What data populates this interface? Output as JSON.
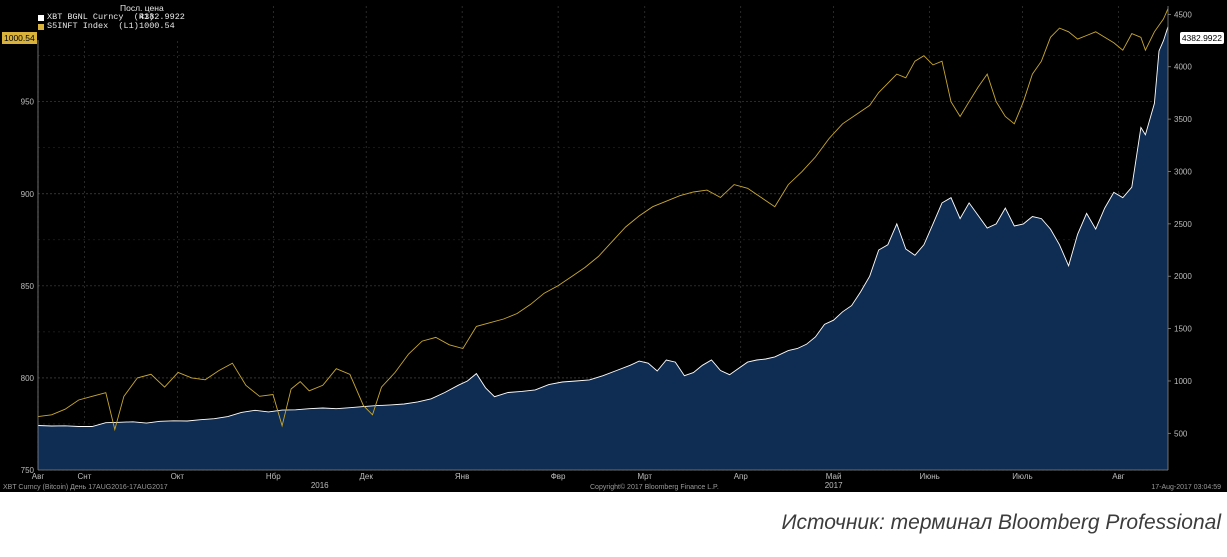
{
  "legend": {
    "header": "Посл. цена",
    "items": [
      {
        "name": "XBT BGNL Curncy  (R1)",
        "value": "4382.9922",
        "color": "#ffffff"
      },
      {
        "name": "S5INFT Index  (L1)",
        "value": "1000.54",
        "color": "#d8b23a"
      }
    ]
  },
  "last_value_tags": {
    "left": "1000.54",
    "right": "4382.9922"
  },
  "footer": {
    "left": "XBT Curncy (Bitcoin)  День 17AUG2016-17AUG2017",
    "center": "Copyright© 2017 Bloomberg Finance L.P.",
    "right": "17-Aug-2017 03:04:59"
  },
  "caption": "Источник: терминал Bloomberg Professional",
  "colors": {
    "background": "#000000",
    "area_fill": "#0f2c52",
    "area_line": "#ffffff",
    "index_line": "#c9a832"
  },
  "chart_data": {
    "type": "line",
    "x_range": [
      "2016-08-17",
      "2017-08-17"
    ],
    "months": [
      "Авг",
      "Снт",
      "Окт",
      "Нбр",
      "Дек",
      "Янв",
      "Фвр",
      "Мрт",
      "Апр",
      "Май",
      "Июнь",
      "Июль",
      "Авг"
    ],
    "years": [
      "2016",
      "2017"
    ],
    "y_left": {
      "min": 750,
      "max": 1002,
      "ticks": [
        750,
        800,
        850,
        900,
        950
      ]
    },
    "y_right": {
      "min": 150,
      "max": 4580,
      "ticks": [
        500,
        1000,
        1500,
        2000,
        2500,
        3000,
        3500,
        4000,
        4500
      ]
    },
    "grid": true,
    "series": [
      {
        "name": "XBT BGNL Curncy",
        "axis": "right",
        "style": "area",
        "points": [
          [
            0,
            575
          ],
          [
            6,
            570
          ],
          [
            12,
            572
          ],
          [
            18,
            565
          ],
          [
            24,
            565
          ],
          [
            30,
            602
          ],
          [
            36,
            605
          ],
          [
            42,
            610
          ],
          [
            48,
            598
          ],
          [
            54,
            615
          ],
          [
            60,
            620
          ],
          [
            66,
            618
          ],
          [
            72,
            630
          ],
          [
            78,
            640
          ],
          [
            84,
            660
          ],
          [
            90,
            700
          ],
          [
            96,
            720
          ],
          [
            102,
            705
          ],
          [
            108,
            722
          ],
          [
            114,
            725
          ],
          [
            120,
            735
          ],
          [
            126,
            742
          ],
          [
            132,
            735
          ],
          [
            138,
            745
          ],
          [
            144,
            755
          ],
          [
            150,
            765
          ],
          [
            156,
            772
          ],
          [
            162,
            780
          ],
          [
            168,
            800
          ],
          [
            174,
            830
          ],
          [
            180,
            890
          ],
          [
            186,
            960
          ],
          [
            190,
            1000
          ],
          [
            194,
            1070
          ],
          [
            198,
            935
          ],
          [
            202,
            850
          ],
          [
            208,
            890
          ],
          [
            214,
            900
          ],
          [
            220,
            915
          ],
          [
            226,
            965
          ],
          [
            232,
            990
          ],
          [
            238,
            1000
          ],
          [
            244,
            1010
          ],
          [
            250,
            1050
          ],
          [
            256,
            1100
          ],
          [
            262,
            1150
          ],
          [
            266,
            1190
          ],
          [
            270,
            1170
          ],
          [
            274,
            1095
          ],
          [
            278,
            1200
          ],
          [
            282,
            1180
          ],
          [
            286,
            1050
          ],
          [
            290,
            1080
          ],
          [
            294,
            1150
          ],
          [
            298,
            1200
          ],
          [
            302,
            1100
          ],
          [
            306,
            1060
          ],
          [
            310,
            1120
          ],
          [
            314,
            1180
          ],
          [
            318,
            1200
          ],
          [
            322,
            1210
          ],
          [
            326,
            1230
          ],
          [
            332,
            1290
          ],
          [
            336,
            1310
          ],
          [
            340,
            1350
          ],
          [
            344,
            1420
          ],
          [
            348,
            1540
          ],
          [
            352,
            1580
          ],
          [
            356,
            1660
          ],
          [
            360,
            1720
          ],
          [
            364,
            1850
          ],
          [
            368,
            2000
          ],
          [
            372,
            2250
          ],
          [
            376,
            2300
          ],
          [
            380,
            2500
          ],
          [
            384,
            2260
          ],
          [
            388,
            2200
          ],
          [
            392,
            2300
          ],
          [
            396,
            2500
          ],
          [
            400,
            2700
          ],
          [
            404,
            2750
          ],
          [
            408,
            2550
          ],
          [
            412,
            2700
          ],
          [
            416,
            2580
          ],
          [
            420,
            2460
          ],
          [
            424,
            2500
          ],
          [
            428,
            2650
          ],
          [
            432,
            2480
          ],
          [
            436,
            2500
          ],
          [
            440,
            2570
          ],
          [
            444,
            2550
          ],
          [
            448,
            2450
          ],
          [
            452,
            2300
          ],
          [
            456,
            2100
          ],
          [
            460,
            2400
          ],
          [
            464,
            2600
          ],
          [
            468,
            2450
          ],
          [
            472,
            2650
          ],
          [
            476,
            2800
          ],
          [
            480,
            2750
          ],
          [
            484,
            2850
          ],
          [
            488,
            3420
          ],
          [
            490,
            3350
          ],
          [
            494,
            3650
          ],
          [
            496,
            4150
          ],
          [
            498,
            4250
          ],
          [
            500,
            4382
          ]
        ]
      },
      {
        "name": "S5INFT Index",
        "axis": "left",
        "style": "line",
        "points": [
          [
            0,
            779
          ],
          [
            6,
            780
          ],
          [
            12,
            783
          ],
          [
            18,
            788
          ],
          [
            24,
            790
          ],
          [
            30,
            792
          ],
          [
            34,
            772
          ],
          [
            38,
            790
          ],
          [
            44,
            800
          ],
          [
            50,
            802
          ],
          [
            56,
            795
          ],
          [
            62,
            803
          ],
          [
            68,
            800
          ],
          [
            74,
            799
          ],
          [
            80,
            804
          ],
          [
            86,
            808
          ],
          [
            92,
            796
          ],
          [
            98,
            790
          ],
          [
            104,
            791
          ],
          [
            108,
            774
          ],
          [
            112,
            794
          ],
          [
            116,
            798
          ],
          [
            120,
            793
          ],
          [
            126,
            796
          ],
          [
            132,
            805
          ],
          [
            138,
            802
          ],
          [
            144,
            785
          ],
          [
            148,
            780
          ],
          [
            152,
            795
          ],
          [
            158,
            803
          ],
          [
            164,
            813
          ],
          [
            170,
            820
          ],
          [
            176,
            822
          ],
          [
            182,
            818
          ],
          [
            188,
            816
          ],
          [
            194,
            828
          ],
          [
            200,
            830
          ],
          [
            206,
            832
          ],
          [
            212,
            835
          ],
          [
            218,
            840
          ],
          [
            224,
            846
          ],
          [
            230,
            850
          ],
          [
            236,
            855
          ],
          [
            242,
            860
          ],
          [
            248,
            866
          ],
          [
            254,
            874
          ],
          [
            260,
            882
          ],
          [
            266,
            888
          ],
          [
            272,
            893
          ],
          [
            278,
            896
          ],
          [
            284,
            899
          ],
          [
            290,
            901
          ],
          [
            296,
            902
          ],
          [
            302,
            898
          ],
          [
            308,
            905
          ],
          [
            314,
            903
          ],
          [
            320,
            898
          ],
          [
            326,
            893
          ],
          [
            332,
            905
          ],
          [
            338,
            912
          ],
          [
            344,
            920
          ],
          [
            350,
            930
          ],
          [
            356,
            938
          ],
          [
            362,
            943
          ],
          [
            368,
            948
          ],
          [
            372,
            955
          ],
          [
            376,
            960
          ],
          [
            380,
            965
          ],
          [
            384,
            963
          ],
          [
            388,
            972
          ],
          [
            392,
            975
          ],
          [
            396,
            970
          ],
          [
            400,
            972
          ],
          [
            404,
            950
          ],
          [
            408,
            942
          ],
          [
            412,
            950
          ],
          [
            416,
            958
          ],
          [
            420,
            965
          ],
          [
            424,
            950
          ],
          [
            428,
            942
          ],
          [
            432,
            938
          ],
          [
            436,
            950
          ],
          [
            440,
            965
          ],
          [
            444,
            972
          ],
          [
            448,
            985
          ],
          [
            452,
            990
          ],
          [
            456,
            988
          ],
          [
            460,
            984
          ],
          [
            464,
            986
          ],
          [
            468,
            988
          ],
          [
            472,
            985
          ],
          [
            476,
            982
          ],
          [
            480,
            978
          ],
          [
            484,
            987
          ],
          [
            488,
            985
          ],
          [
            490,
            978
          ],
          [
            494,
            988
          ],
          [
            498,
            995
          ],
          [
            500,
            1000.54
          ]
        ]
      }
    ]
  }
}
